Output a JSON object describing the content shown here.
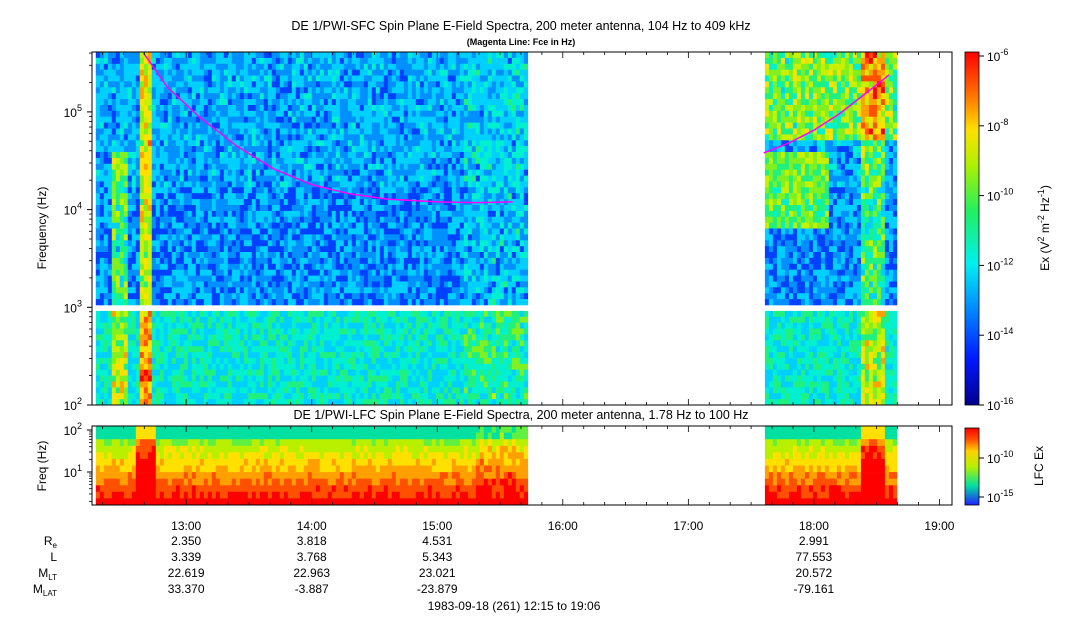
{
  "chart_data": [
    {
      "type": "heatmap",
      "panel": "sfc",
      "title": "DE 1/PWI-SFC  Spin Plane E-Field Spectra, 200 meter antenna, 104 Hz to 409 kHz",
      "subtitle": "(Magenta Line: Fce in Hz)",
      "ylabel": "Frequency (Hz)",
      "yscale": "log",
      "ylim": [
        100,
        409000
      ],
      "y_ticks": [
        {
          "base": "10",
          "exp": "2",
          "value": 100
        },
        {
          "base": "10",
          "exp": "3",
          "value": 1000
        },
        {
          "base": "10",
          "exp": "4",
          "value": 10000
        },
        {
          "base": "10",
          "exp": "5",
          "value": 100000
        }
      ],
      "colorbar": {
        "label_parts": [
          "Ex (V",
          "2",
          " m",
          "-2",
          " Hz",
          "-1",
          ")"
        ],
        "ticks": [
          {
            "base": "10",
            "exp": "-6"
          },
          {
            "base": "10",
            "exp": "-8"
          },
          {
            "base": "10",
            "exp": "-10"
          },
          {
            "base": "10",
            "exp": "-12"
          },
          {
            "base": "10",
            "exp": "-14"
          },
          {
            "base": "10",
            "exp": "-16"
          }
        ]
      },
      "data_gaps_hours": [
        [
          15.69,
          17.61
        ]
      ],
      "fce_line_color": "#ff00ff",
      "fce_line": [
        {
          "t": 12.66,
          "f": 400000
        },
        {
          "t": 12.85,
          "f": 180000
        },
        {
          "t": 13.1,
          "f": 90000
        },
        {
          "t": 13.4,
          "f": 45000
        },
        {
          "t": 13.7,
          "f": 26000
        },
        {
          "t": 14.0,
          "f": 18000
        },
        {
          "t": 14.3,
          "f": 14500
        },
        {
          "t": 14.6,
          "f": 12800
        },
        {
          "t": 15.0,
          "f": 12000
        },
        {
          "t": 15.3,
          "f": 11800
        },
        {
          "t": 15.6,
          "f": 12000
        },
        {
          "t": 17.6,
          "f": 38000
        },
        {
          "t": 17.8,
          "f": 48000
        },
        {
          "t": 18.0,
          "f": 65000
        },
        {
          "t": 18.2,
          "f": 95000
        },
        {
          "t": 18.4,
          "f": 150000
        },
        {
          "t": 18.6,
          "f": 240000
        }
      ]
    },
    {
      "type": "heatmap",
      "panel": "lfc",
      "title": "DE 1/PWI-LFC  Spin Plane E-Field Spectra, 200 meter antenna, 1.78 Hz to 100 Hz",
      "ylabel": "Freq (Hz)",
      "yscale": "log",
      "ylim": [
        1.78,
        100
      ],
      "y_ticks": [
        {
          "base": "10",
          "exp": "2",
          "value": 100
        },
        {
          "base": "10",
          "exp": "1",
          "value": 10
        }
      ],
      "colorbar": {
        "label": "LFC Ex",
        "ticks": [
          {
            "base": "10",
            "exp": "-10"
          },
          {
            "base": "10",
            "exp": "-15"
          }
        ]
      },
      "data_gaps_hours": [
        [
          15.69,
          17.61
        ]
      ]
    }
  ],
  "time_axis": {
    "start_hour": 12.25,
    "end_hour": 19.1,
    "tick_labels": [
      {
        "label": "13:00",
        "hour": 13
      },
      {
        "label": "14:00",
        "hour": 14
      },
      {
        "label": "15:00",
        "hour": 15
      },
      {
        "label": "16:00",
        "hour": 16
      },
      {
        "label": "17:00",
        "hour": 17
      },
      {
        "label": "18:00",
        "hour": 18
      },
      {
        "label": "19:00",
        "hour": 19
      }
    ],
    "footer": "1983-09-18 (261) 12:15 to 19:06"
  },
  "ephemeris": {
    "rows": [
      {
        "label": "R",
        "sub": "e",
        "values": [
          "2.350",
          "3.818",
          "4.531",
          "",
          "",
          "2.991",
          ""
        ]
      },
      {
        "label": "L",
        "sub": "",
        "values": [
          "3.339",
          "3.768",
          "5.343",
          "",
          "",
          "77.553",
          ""
        ]
      },
      {
        "label": "M",
        "sub": "LT",
        "values": [
          "22.619",
          "22.963",
          "23.021",
          "",
          "",
          "20.572",
          ""
        ]
      },
      {
        "label": "M",
        "sub": "LAT",
        "values": [
          "33.370",
          "-3.887",
          "-23.879",
          "",
          "",
          "-79.161",
          ""
        ]
      }
    ]
  }
}
